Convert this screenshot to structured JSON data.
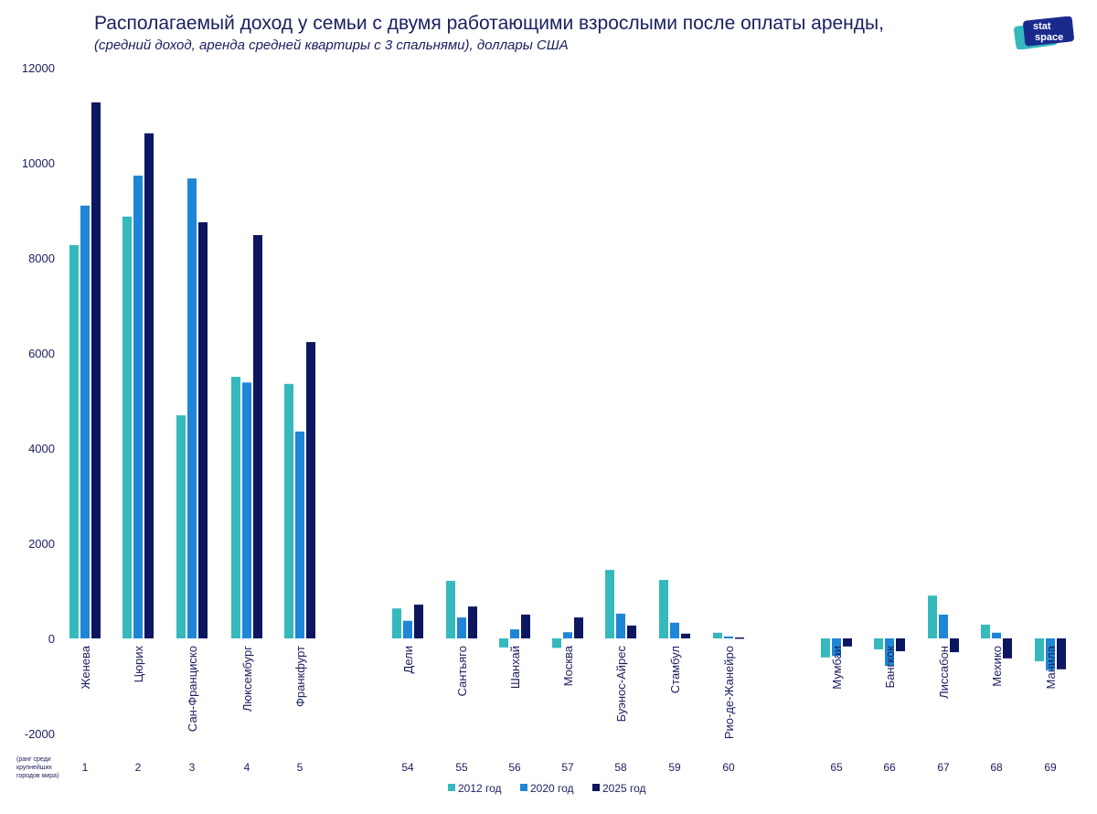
{
  "title": "Располагаемый доход у семьи с двумя работающими взрослыми после оплаты аренды,",
  "subtitle": "(средний доход, аренда средней квартиры с 3 спальнями), доллары США",
  "logo_text": "stat space",
  "rank_note": [
    "(ранг среди",
    "крупнейших",
    "городов мира)"
  ],
  "colors": {
    "2012": "#35b9bd",
    "2020": "#1e86d6",
    "2025": "#0d1660"
  },
  "chart_data": {
    "type": "bar",
    "title": "Располагаемый доход у семьи с двумя работающими взрослыми после оплаты аренды,",
    "ylim": [
      -2000,
      12000
    ],
    "yticks": [
      -2000,
      0,
      2000,
      4000,
      6000,
      8000,
      10000,
      12000
    ],
    "grid": false,
    "legend": "bottom",
    "categories": [
      "Женева",
      "Цюрих",
      "Сан-Франциско",
      "Люксембург",
      "Франкфурт",
      "Дели",
      "Сантьяго",
      "Шанхай",
      "Москва",
      "Буэнос-Айрес",
      "Стамбул",
      "Рио-де-Жанейро",
      "Мумбаи",
      "Бангкок",
      "Лиссабон",
      "Мехико",
      "Манила"
    ],
    "ranks": [
      "1",
      "2",
      "3",
      "4",
      "5",
      "54",
      "55",
      "56",
      "57",
      "58",
      "59",
      "60",
      "65",
      "66",
      "67",
      "68",
      "69"
    ],
    "series": [
      {
        "name": "2012 год",
        "values": [
          8270,
          8870,
          4690,
          5500,
          5350,
          630,
          1210,
          -190,
          -200,
          1440,
          1230,
          120,
          -400,
          -230,
          900,
          290,
          -480
        ]
      },
      {
        "name": "2020 год",
        "values": [
          9100,
          9730,
          9670,
          5380,
          4350,
          370,
          440,
          190,
          130,
          520,
          330,
          40,
          -370,
          -580,
          500,
          120,
          -670
        ]
      },
      {
        "name": "2025 год",
        "values": [
          11270,
          10620,
          8750,
          8480,
          6230,
          710,
          670,
          500,
          440,
          270,
          100,
          20,
          -170,
          -270,
          -290,
          -420,
          -650
        ]
      }
    ]
  }
}
